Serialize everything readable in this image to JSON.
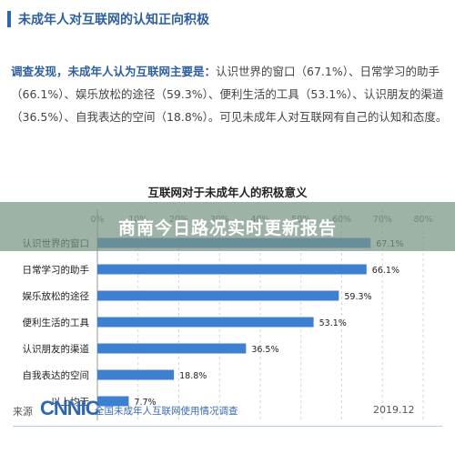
{
  "section": {
    "title": "未成年人对互联网的认知正向积极"
  },
  "paragraph": {
    "lead": "调查发现，未成年人认为互联网主要是：",
    "body": "认识世界的窗口（67.1%）、日常学习的助手（66.1%）、娱乐放松的途径（59.3%）、便利生活的工具（53.1%）、认识朋友的渠道（36.5%）、自我表达的空间（18.8%）。可见未成年人对互联网有自己的认知和态度。"
  },
  "banner": {
    "text": "商南今日路况实时更新报告"
  },
  "footer": {
    "source_label": "来源",
    "logo": "CNNIC",
    "report": "全国未成年人互联网使用情况调查",
    "date": "2019.12"
  },
  "chart_data": {
    "type": "bar",
    "orientation": "horizontal",
    "title": "互联网对于未成年人的积极意义",
    "categories": [
      "认识世界的窗口",
      "日常学习的助手",
      "娱乐放松的途径",
      "便利生活的工具",
      "认识朋友的渠道",
      "自我表达的空间",
      "以上均无"
    ],
    "values": [
      67.1,
      66.1,
      59.3,
      53.1,
      36.5,
      18.8,
      7.7
    ],
    "value_labels": [
      "67.1%",
      "66.1%",
      "59.3%",
      "53.1%",
      "36.5%",
      "18.8%",
      "7.7%"
    ],
    "xlim": [
      0,
      80
    ],
    "ticks": [
      0,
      10,
      20,
      30,
      40,
      50,
      60,
      70,
      80
    ],
    "tick_labels": [
      "0%",
      "10%",
      "20%",
      "30%",
      "40%",
      "50%",
      "60%",
      "70%",
      "80%"
    ],
    "grid": true,
    "bar_color": "#3d7fd1"
  }
}
